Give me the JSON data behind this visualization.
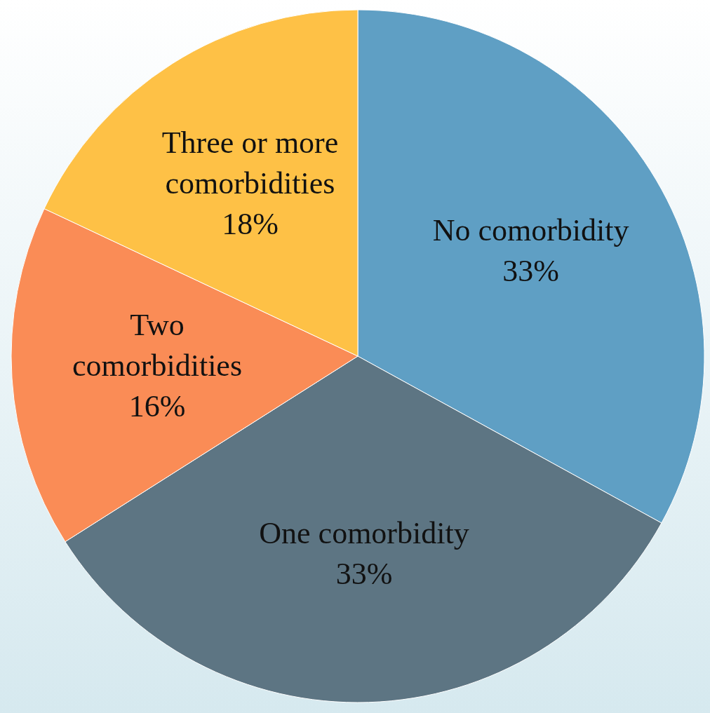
{
  "chart_data": {
    "type": "pie",
    "categories": [
      "No comorbidity",
      "One comorbidity",
      "Two comorbidities",
      "Three or more comorbidities"
    ],
    "values": [
      33,
      33,
      16,
      18
    ],
    "colors": [
      "#5f9fc4",
      "#5d7583",
      "#fa8c56",
      "#fec146"
    ],
    "value_labels": [
      "33%",
      "33%",
      "16%",
      "18%"
    ]
  }
}
